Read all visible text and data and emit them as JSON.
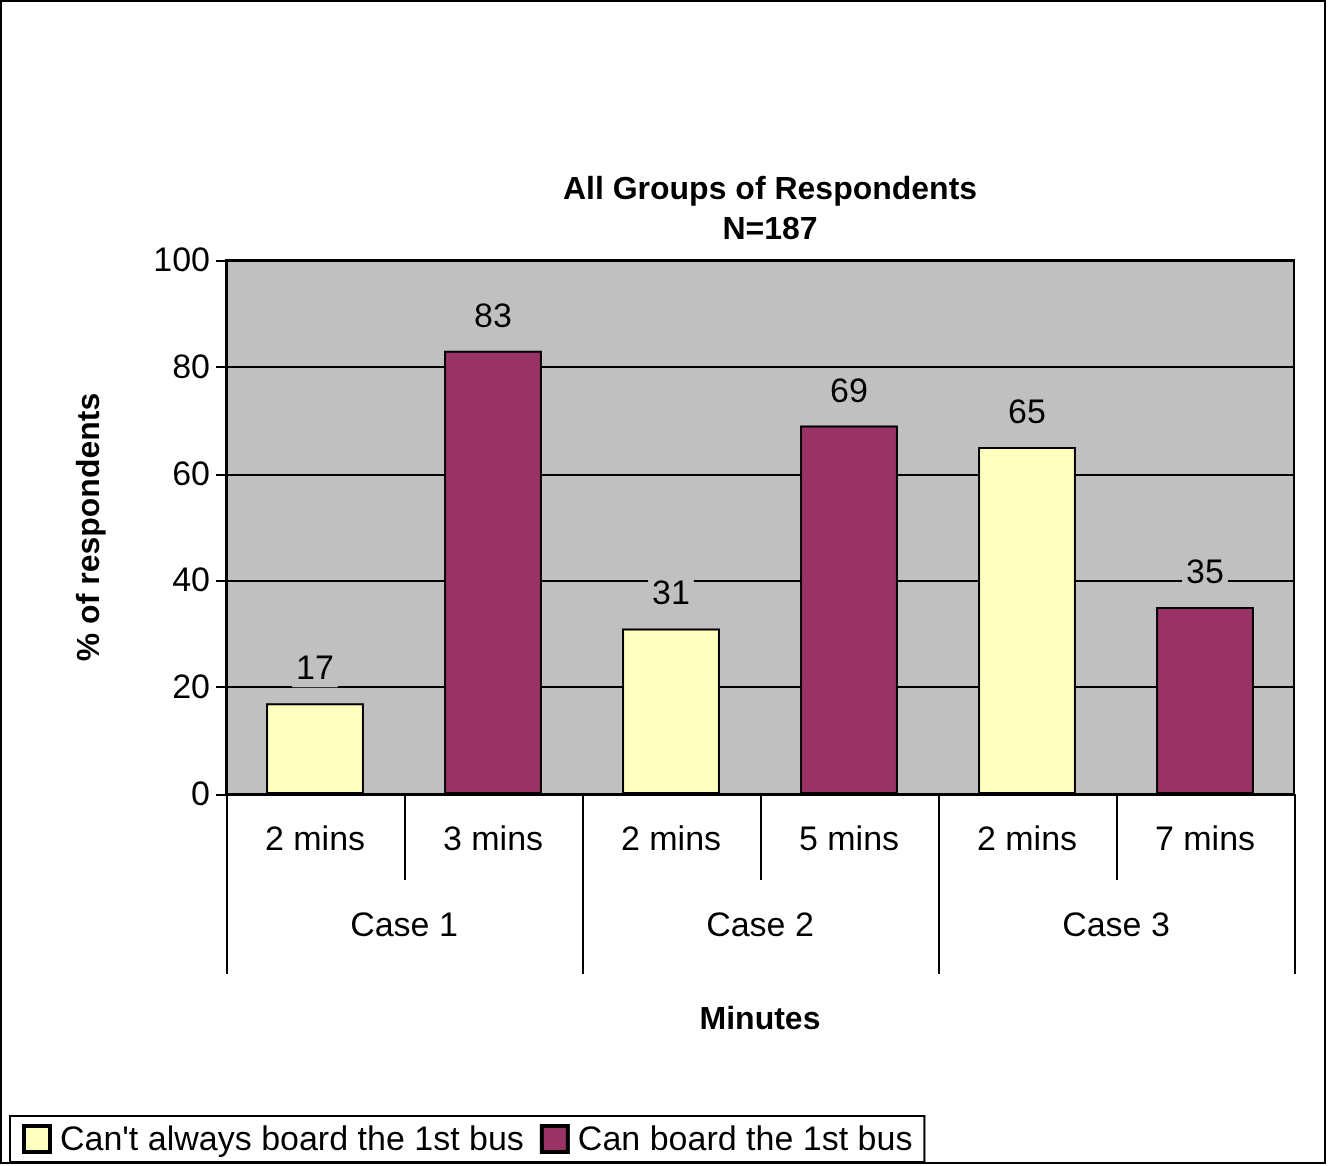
{
  "chart_data": {
    "type": "bar",
    "title": "All Groups of Respondents",
    "subtitle": "N=187",
    "xlabel": "Minutes",
    "ylabel": "% of respondents",
    "categories": [
      "2 mins",
      "3 mins",
      "2 mins",
      "5 mins",
      "2 mins",
      "7 mins"
    ],
    "annotations": [
      "Case 1",
      "Case 2",
      "Case 3"
    ],
    "series": [
      {
        "name": "Can't always board the 1st bus",
        "color": "#ffffc0",
        "values": [
          17,
          null,
          31,
          null,
          65,
          null
        ]
      },
      {
        "name": "Can board the 1st bus",
        "color": "#993366",
        "values": [
          null,
          83,
          null,
          69,
          null,
          35
        ]
      }
    ],
    "ylim": [
      0,
      100
    ],
    "yticks": [
      0,
      20,
      40,
      60,
      80,
      100
    ],
    "grid": "y",
    "legend": "bottom",
    "data_labels": true
  }
}
